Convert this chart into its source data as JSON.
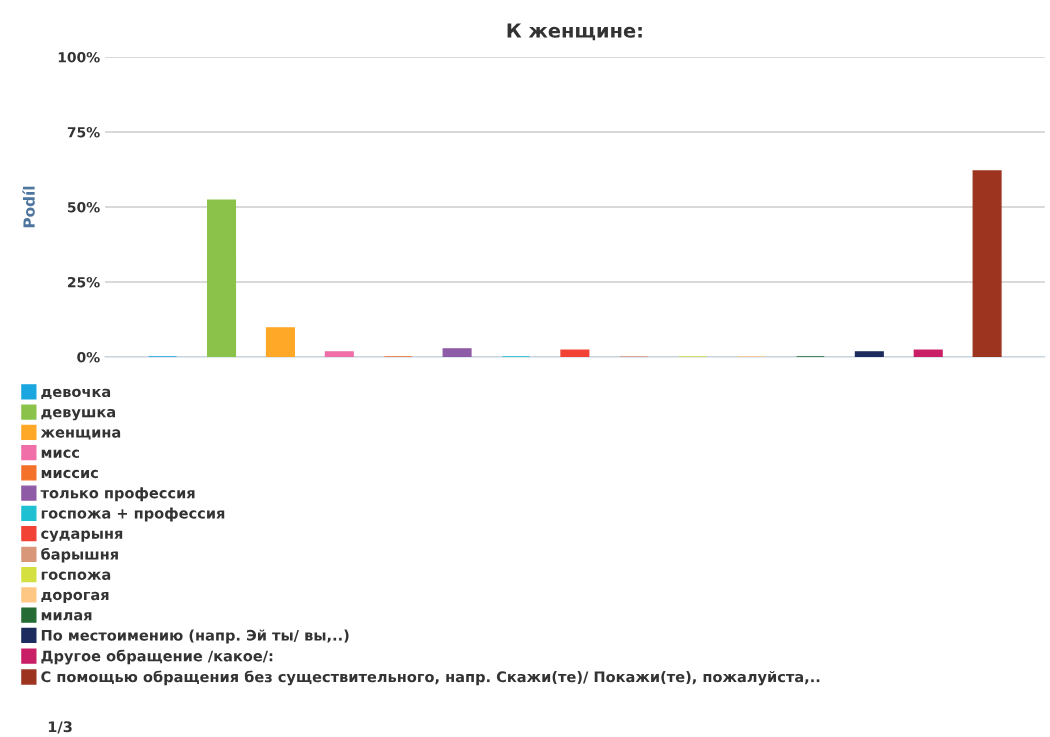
{
  "chart_data": {
    "type": "bar",
    "title": "К женщине:",
    "ylabel": "Podíl",
    "categories": [
      null
    ],
    "series": [
      {
        "name": "девочка",
        "color": "#1aa7e0",
        "values": [
          0
        ]
      },
      {
        "name": "девушка",
        "color": "#8bc34a",
        "values": [
          52.3
        ]
      },
      {
        "name": "женщина",
        "color": "#ffa726",
        "values": [
          9.7
        ]
      },
      {
        "name": "мисс",
        "color": "#f06fa8",
        "values": [
          1.7
        ]
      },
      {
        "name": "миссис",
        "color": "#f4712a",
        "values": [
          0
        ]
      },
      {
        "name": "только профессия",
        "color": "#8e5ba6",
        "values": [
          2.7
        ]
      },
      {
        "name": "госпожа + профессия",
        "color": "#1ec0d2",
        "values": [
          0
        ]
      },
      {
        "name": "сударыня",
        "color": "#f24236",
        "values": [
          2.3
        ]
      },
      {
        "name": "барышня",
        "color": "#d9977a",
        "values": [
          0
        ]
      },
      {
        "name": "госпожа",
        "color": "#d4e040",
        "values": [
          0
        ]
      },
      {
        "name": "дорогая",
        "color": "#ffc784",
        "values": [
          0
        ]
      },
      {
        "name": "милая",
        "color": "#256b35",
        "values": [
          0
        ]
      },
      {
        "name": "По местоимению (напр. Эй ты/ вы,..)",
        "color": "#1d2b5e",
        "values": [
          1.7
        ]
      },
      {
        "name": "Другое обращение /какое/:",
        "color": "#c91f66",
        "values": [
          2.3
        ]
      },
      {
        "name": "С помощью обращения без существительного, напр. Скажи(те)/ Покажи(те), пожалуйста,..",
        "color": "#9c3420",
        "values": [
          62
        ]
      }
    ],
    "ylim": [
      0,
      100
    ],
    "yticks": [
      {
        "value": 0,
        "label": "0%"
      },
      {
        "value": 25,
        "label": "25%"
      },
      {
        "value": 50,
        "label": "50%"
      },
      {
        "value": 75,
        "label": "75%"
      },
      {
        "value": 100,
        "label": "100%"
      }
    ],
    "grid": "y",
    "legend": "bottom",
    "annotations": [
      "1/3"
    ]
  }
}
